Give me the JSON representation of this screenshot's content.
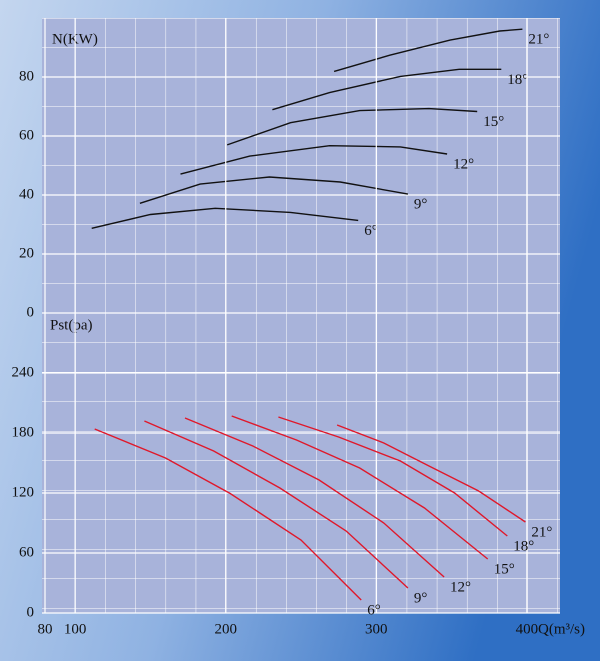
{
  "chart_data": [
    {
      "type": "line",
      "y_label": "N(KW)",
      "xlim": [
        80,
        420
      ],
      "ylim": [
        0,
        100
      ],
      "yticks": [
        0,
        20,
        40,
        60,
        80
      ],
      "series": [
        {
          "name": "6°",
          "color": "#111111",
          "x": [
            111,
            150,
            193,
            243,
            288
          ],
          "values": [
            28.7,
            33.4,
            35.5,
            34.1,
            31.4
          ]
        },
        {
          "name": "9°",
          "color": "#111111",
          "x": [
            143,
            183,
            229,
            276,
            321
          ],
          "values": [
            37.2,
            43.7,
            46.1,
            44.4,
            40.3
          ]
        },
        {
          "name": "12°",
          "color": "#111111",
          "x": [
            170,
            216,
            269,
            316,
            347
          ],
          "values": [
            47.1,
            53.2,
            56.7,
            56.3,
            53.9
          ]
        },
        {
          "name": "15°",
          "color": "#111111",
          "x": [
            201,
            243,
            289,
            335,
            367
          ],
          "values": [
            57.0,
            64.5,
            68.6,
            69.3,
            68.3
          ]
        },
        {
          "name": "18°",
          "color": "#111111",
          "x": [
            231,
            269,
            316,
            355,
            383
          ],
          "values": [
            68.9,
            74.7,
            80.2,
            82.6,
            82.6
          ]
        },
        {
          "name": "21°",
          "color": "#111111",
          "x": [
            272,
            309,
            349,
            382,
            397
          ],
          "values": [
            81.9,
            87.4,
            92.5,
            95.6,
            96.2
          ]
        }
      ]
    },
    {
      "type": "line",
      "y_label": "Pst(pa)",
      "x_label": "Q(m³/s)",
      "xlim": [
        80,
        420
      ],
      "xticks": [
        80,
        100,
        200,
        300,
        400
      ],
      "ylim": [
        0,
        300
      ],
      "yticks": [
        0,
        60,
        120,
        180,
        240
      ],
      "series": [
        {
          "name": "6°",
          "color": "#e0182a",
          "x": [
            113,
            160,
            203,
            250,
            290
          ],
          "values": [
            184,
            155,
            119.5,
            73,
            13
          ]
        },
        {
          "name": "9°",
          "color": "#e0182a",
          "x": [
            146,
            192,
            236,
            280,
            321
          ],
          "values": [
            192,
            162,
            125,
            82,
            25
          ]
        },
        {
          "name": "12°",
          "color": "#e0182a",
          "x": [
            173,
            218,
            262,
            305,
            345
          ],
          "values": [
            195,
            167,
            133,
            90,
            36
          ]
        },
        {
          "name": "15°",
          "color": "#e0182a",
          "x": [
            204,
            247,
            289,
            332,
            374
          ],
          "values": [
            197,
            173,
            145,
            105,
            54
          ]
        },
        {
          "name": "18°",
          "color": "#e0182a",
          "x": [
            235,
            275,
            316,
            352,
            387
          ],
          "values": [
            196,
            176,
            152,
            120,
            77
          ]
        },
        {
          "name": "21°",
          "color": "#e0182a",
          "x": [
            274,
            305,
            335,
            368,
            399
          ],
          "values": [
            188,
            170,
            147,
            122,
            91
          ]
        }
      ]
    }
  ]
}
